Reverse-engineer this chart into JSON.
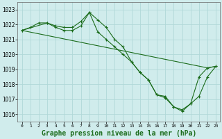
{
  "background_color": "#d0ecec",
  "grid_color": "#b0d8d8",
  "line_color": "#1a6b1a",
  "xlabel": "Graphe pression niveau de la mer (hPa)",
  "xlim": [
    -0.5,
    23.5
  ],
  "ylim": [
    1015.5,
    1023.5
  ],
  "yticks": [
    1016,
    1017,
    1018,
    1019,
    1020,
    1021,
    1022,
    1023
  ],
  "xticks": [
    0,
    1,
    2,
    3,
    4,
    5,
    6,
    7,
    8,
    9,
    10,
    11,
    12,
    13,
    14,
    15,
    16,
    17,
    18,
    19,
    20,
    21,
    22,
    23
  ],
  "series": [
    {
      "x": [
        0,
        1,
        2,
        3,
        4,
        5,
        6,
        7,
        8,
        9,
        10,
        11,
        12,
        13,
        14,
        15,
        16,
        17,
        18,
        19,
        20,
        21,
        22,
        23
      ],
      "y": [
        1021.6,
        1021.8,
        1022.1,
        1022.1,
        1021.9,
        1021.8,
        1021.8,
        1022.2,
        1022.8,
        1022.3,
        1021.8,
        1021.0,
        1020.5,
        1019.5,
        1018.8,
        1018.3,
        1017.3,
        1017.2,
        1016.5,
        1016.3,
        1016.7,
        1018.5,
        1019.1,
        1019.2
      ]
    },
    {
      "x": [
        0,
        22,
        23
      ],
      "y": [
        1021.6,
        1019.1,
        1019.2
      ]
    },
    {
      "x": [
        0,
        3,
        4,
        5,
        6,
        7,
        8,
        9,
        10,
        11,
        12,
        13,
        14,
        15,
        16,
        17,
        18,
        19,
        20,
        21,
        22,
        23
      ],
      "y": [
        1021.6,
        1022.1,
        1021.8,
        1021.6,
        1021.6,
        1021.9,
        1022.8,
        1021.5,
        1021.0,
        1020.5,
        1020.0,
        1019.5,
        1018.8,
        1018.3,
        1017.3,
        1017.1,
        1016.5,
        1016.2,
        1016.7,
        1017.2,
        1018.5,
        1019.2
      ]
    }
  ]
}
